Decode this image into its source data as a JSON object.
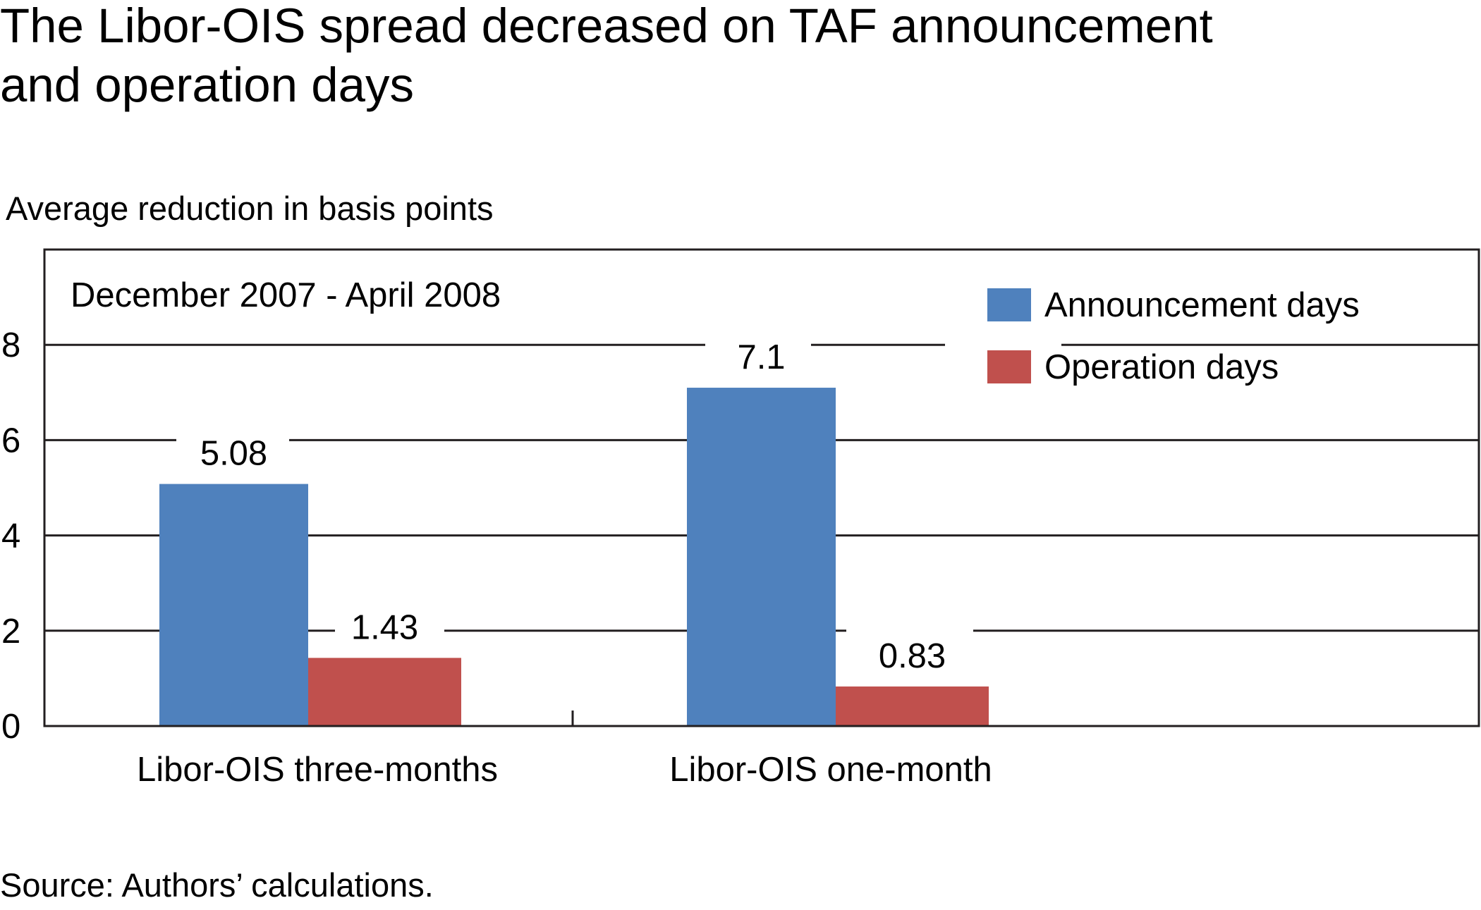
{
  "chart_data": {
    "type": "bar",
    "title": "The Libor-OIS spread decreased on TAF announcement and operation days",
    "title_lines": [
      "The Libor-OIS spread decreased on TAF announcement",
      "and operation days"
    ],
    "ylabel": "Average reduction in basis points",
    "subtitle": "December 2007 - April 2008",
    "categories": [
      "Libor-OIS three-months",
      "Libor-OIS one-month"
    ],
    "series": [
      {
        "name": "Announcement days",
        "color": "#4f81bd",
        "values": [
          5.08,
          7.1
        ],
        "labels": [
          "5.08",
          "7.1"
        ]
      },
      {
        "name": "Operation days",
        "color": "#c0504d",
        "values": [
          1.43,
          0.83
        ],
        "labels": [
          "1.43",
          "0.83"
        ]
      }
    ],
    "ylim": [
      0,
      10
    ],
    "yticks": [
      0,
      2,
      4,
      6,
      8
    ],
    "grid": true,
    "legend_position": "top-right",
    "source": "Source: Authors’ calculations."
  }
}
